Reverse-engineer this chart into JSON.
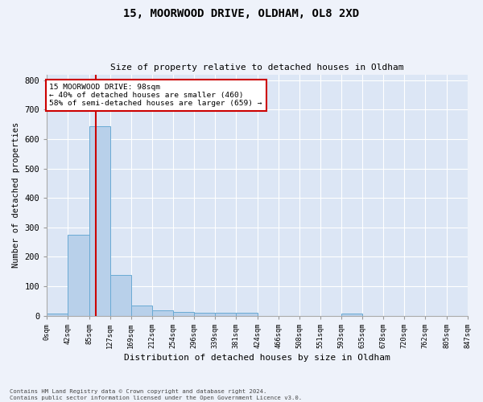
{
  "title_line1": "15, MOORWOOD DRIVE, OLDHAM, OL8 2XD",
  "title_line2": "Size of property relative to detached houses in Oldham",
  "xlabel": "Distribution of detached houses by size in Oldham",
  "ylabel": "Number of detached properties",
  "footnote": "Contains HM Land Registry data © Crown copyright and database right 2024.\nContains public sector information licensed under the Open Government Licence v3.0.",
  "bar_values": [
    8,
    275,
    645,
    138,
    33,
    18,
    12,
    10,
    10,
    9,
    0,
    0,
    0,
    0,
    7,
    0,
    0,
    0
  ],
  "bin_edges": [
    0,
    42,
    85,
    127,
    169,
    212,
    254,
    296,
    339,
    381,
    424,
    466,
    508,
    551,
    593,
    635,
    678,
    720,
    847
  ],
  "tick_labels": [
    "0sqm",
    "42sqm",
    "85sqm",
    "127sqm",
    "169sqm",
    "212sqm",
    "254sqm",
    "296sqm",
    "339sqm",
    "381sqm",
    "424sqm",
    "466sqm",
    "508sqm",
    "551sqm",
    "593sqm",
    "635sqm",
    "678sqm",
    "720sqm",
    "762sqm",
    "805sqm",
    "847sqm"
  ],
  "ylim": [
    0,
    820
  ],
  "yticks": [
    0,
    100,
    200,
    300,
    400,
    500,
    600,
    700,
    800
  ],
  "vline_x": 98,
  "bar_color": "#b8d0ea",
  "bar_edge_color": "#6aaad4",
  "vline_color": "#cc0000",
  "annotation_text": "15 MOORWOOD DRIVE: 98sqm\n← 40% of detached houses are smaller (460)\n58% of semi-detached houses are larger (659) →",
  "annotation_box_color": "#ffffff",
  "annotation_box_edge": "#cc0000",
  "plot_bg_color": "#dce6f5",
  "fig_bg_color": "#eef2fa",
  "grid_color": "#ffffff",
  "tick_locs": [
    0,
    42,
    85,
    127,
    169,
    212,
    254,
    296,
    339,
    381,
    424,
    466,
    508,
    551,
    593,
    635,
    678,
    720,
    762,
    805,
    847
  ],
  "figsize": [
    6.0,
    5.0
  ],
  "dpi": 100
}
